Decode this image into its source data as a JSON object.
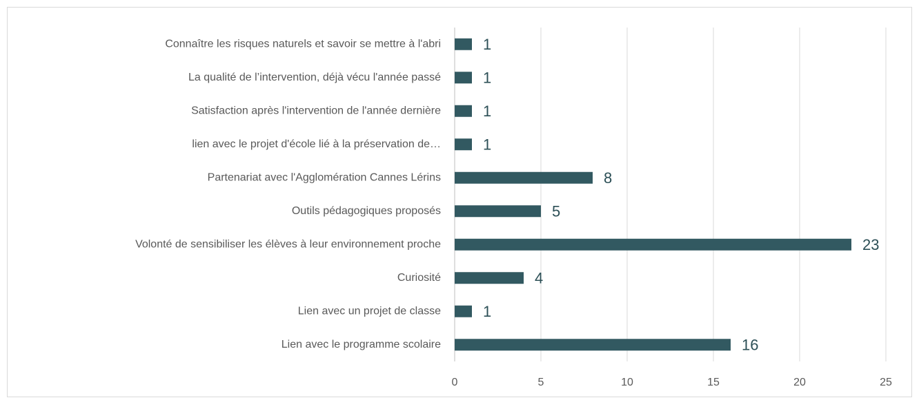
{
  "chart_data": {
    "type": "barh",
    "categories": [
      "Connaître les risques naturels et savoir se mettre à l'abri",
      "La qualité de l’intervention, déjà vécu l'année passé",
      "Satisfaction après l'intervention de l'année dernière",
      "lien avec le projet d'école lié à la préservation de…",
      "Partenariat avec l'Agglomération Cannes Lérins",
      "Outils pédagogiques proposés",
      "Volonté de sensibiliser les élèves à leur environnement proche",
      "Curiosité",
      "Lien avec un projet de classe",
      "Lien avec le programme scolaire"
    ],
    "values": [
      1,
      1,
      1,
      1,
      8,
      5,
      23,
      4,
      1,
      16
    ],
    "color": "#325961",
    "xlim": [
      0,
      25
    ],
    "xticks": [
      0,
      5,
      10,
      15,
      20,
      25
    ],
    "grid": true
  }
}
